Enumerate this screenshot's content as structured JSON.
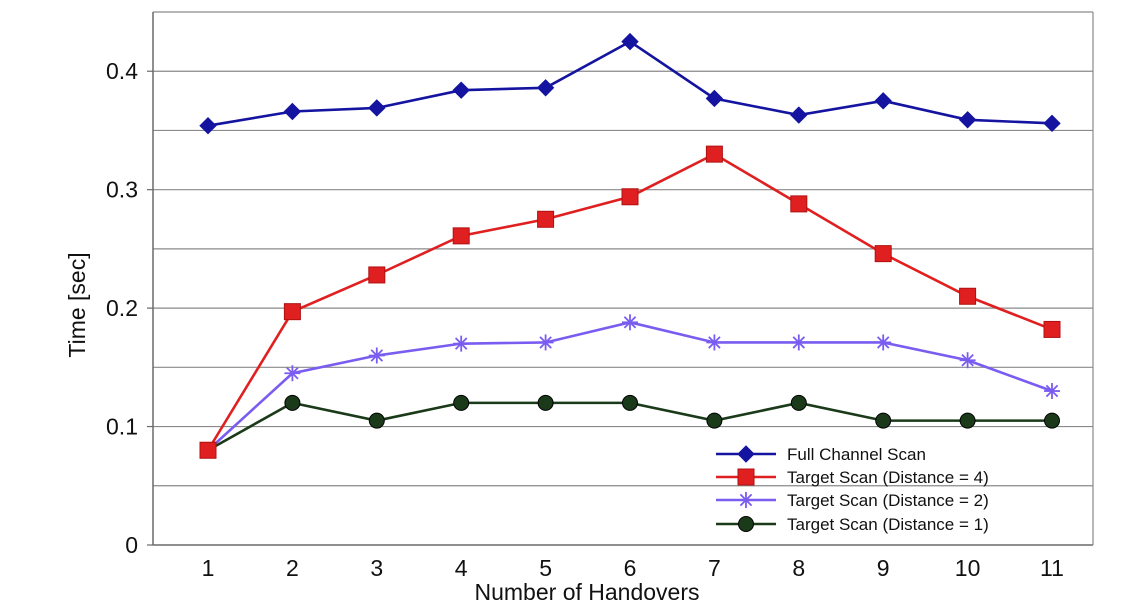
{
  "chart_data": {
    "type": "line",
    "title": "",
    "xlabel": "Number of Handovers",
    "ylabel": "Time [sec]",
    "categories": [
      "1",
      "2",
      "3",
      "4",
      "5",
      "6",
      "7",
      "8",
      "9",
      "10",
      "11"
    ],
    "ylim": [
      0,
      0.45
    ],
    "yticks": [
      0,
      0.1,
      0.2,
      0.3,
      0.4
    ],
    "ytick_labels": [
      "0",
      "0.1",
      "0.2",
      "0.3",
      "0.4"
    ],
    "grid": true,
    "legend_position": "bottom-right",
    "series": [
      {
        "name": "Full Channel Scan",
        "color": "#1414a0",
        "marker": "diamond",
        "values": [
          0.354,
          0.366,
          0.369,
          0.384,
          0.386,
          0.425,
          0.377,
          0.363,
          0.375,
          0.359,
          0.356
        ]
      },
      {
        "name": "Target Scan (Distance = 4)",
        "color": "#e02020",
        "marker": "square",
        "values": [
          0.08,
          0.197,
          0.228,
          0.261,
          0.275,
          0.294,
          0.33,
          0.288,
          0.246,
          0.21,
          0.182
        ]
      },
      {
        "name": "Target Scan (Distance = 2)",
        "color": "#7a5cf0",
        "marker": "asterisk",
        "values": [
          0.08,
          0.145,
          0.16,
          0.17,
          0.171,
          0.188,
          0.171,
          0.171,
          0.171,
          0.156,
          0.13
        ]
      },
      {
        "name": "Target Scan (Distance = 1)",
        "color": "#1a3a1a",
        "marker": "circle",
        "values": [
          0.08,
          0.12,
          0.105,
          0.12,
          0.12,
          0.12,
          0.105,
          0.12,
          0.105,
          0.105,
          0.105
        ]
      }
    ]
  }
}
